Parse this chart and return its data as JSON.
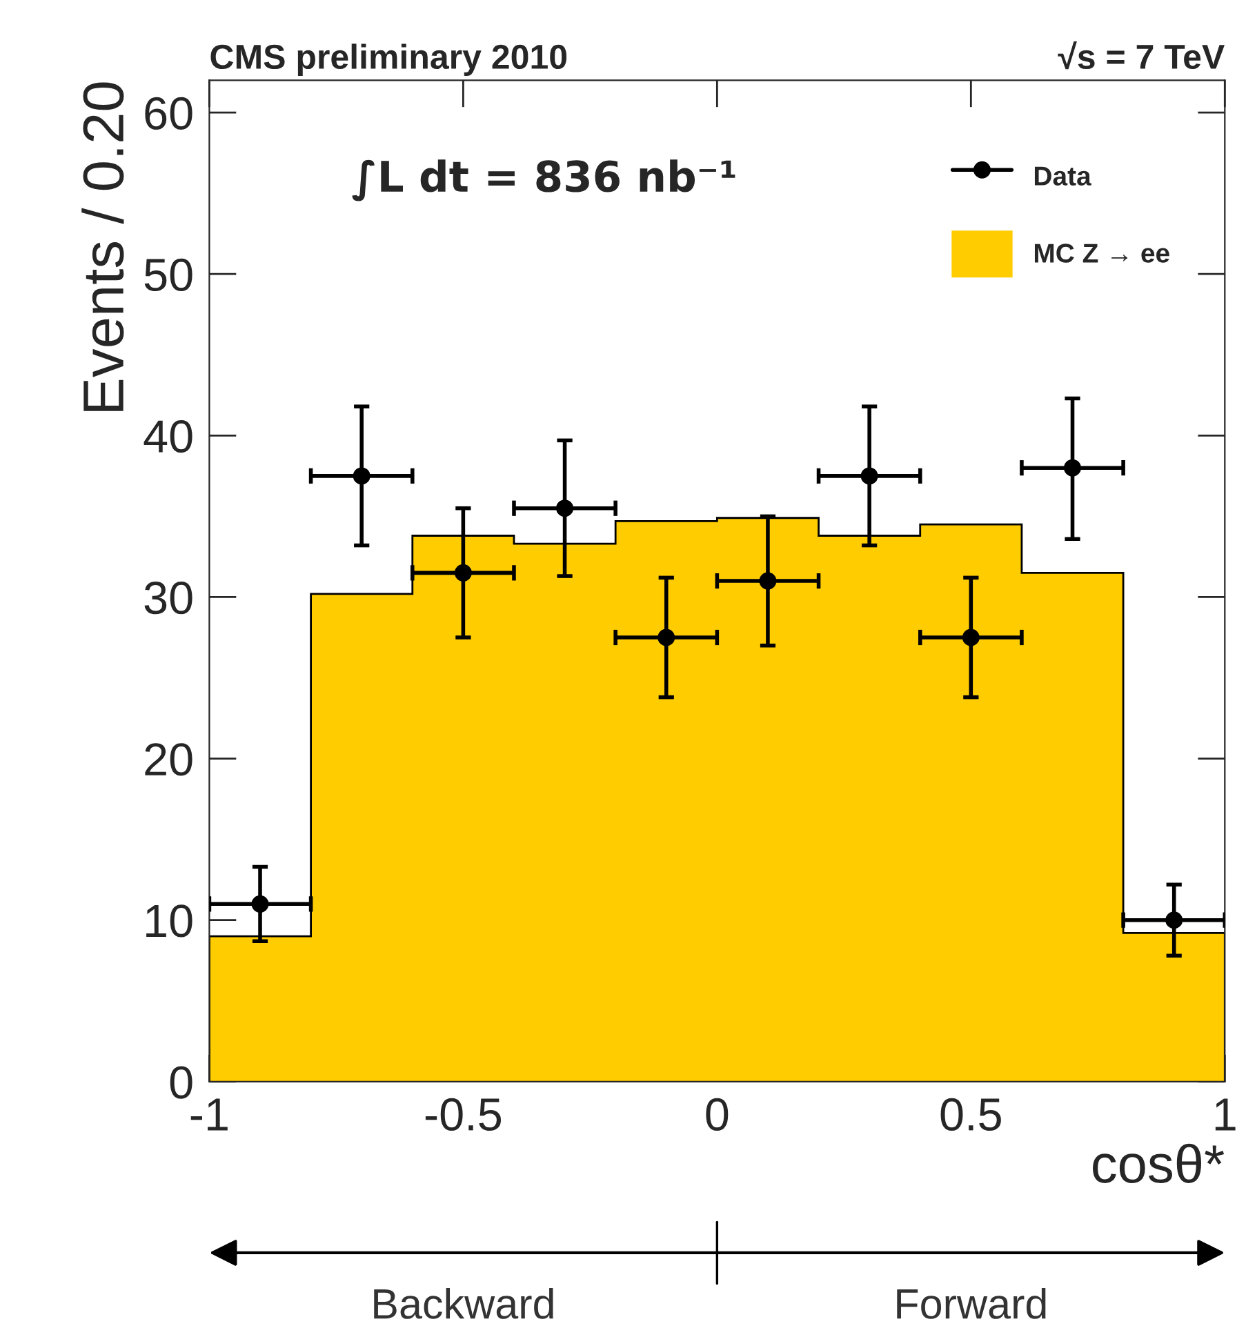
{
  "chart_data": {
    "type": "histogram",
    "title": "CMS preliminary 2010",
    "subtitle": "√s = 7 TeV",
    "xlabel": "cosθ*",
    "ylabel": "Events / 0.20",
    "annotations": [
      "∫L dt = 836 nb⁻¹",
      "Backward",
      "Forward"
    ],
    "series": [
      {
        "name": "MC Z → ee",
        "color": "#ffcc00",
        "bins": [
          -1,
          -0.8,
          -0.6,
          -0.4,
          -0.2,
          0,
          0.2,
          0.4,
          0.6,
          0.8,
          1
        ],
        "values": [
          9.0,
          30.2,
          33.8,
          33.3,
          34.7,
          34.9,
          33.8,
          34.5,
          31.5,
          9.2
        ]
      },
      {
        "name": "Data",
        "type": "scatter",
        "color": "#000000",
        "x": [
          -0.9,
          -0.7,
          -0.5,
          -0.3,
          -0.1,
          0.1,
          0.3,
          0.5,
          0.7,
          0.9
        ],
        "values": [
          11.0,
          37.5,
          31.5,
          35.5,
          27.5,
          31.0,
          37.5,
          27.5,
          38.0,
          10.0
        ],
        "errors": [
          [
            8.7,
            13.3
          ],
          [
            33.2,
            41.8
          ],
          [
            27.5,
            35.5
          ],
          [
            31.3,
            39.7
          ],
          [
            23.8,
            31.2
          ],
          [
            27.0,
            35.0
          ],
          [
            33.2,
            41.8
          ],
          [
            23.8,
            31.2
          ],
          [
            33.6,
            42.3
          ],
          [
            7.8,
            12.2
          ]
        ],
        "xerrors": [
          0.1,
          0.1,
          0.1,
          0.1,
          0.1,
          0.1,
          0.1,
          0.1,
          0.1,
          0.1
        ]
      }
    ],
    "marker": "circle",
    "xlim": [
      -1,
      1
    ],
    "ylim": [
      0,
      62
    ],
    "xticks": [
      -1,
      -0.5,
      0,
      0.5,
      1
    ],
    "yticks": [
      0,
      10,
      20,
      30,
      40,
      50,
      60
    ],
    "grid": false,
    "legend": "top right"
  }
}
